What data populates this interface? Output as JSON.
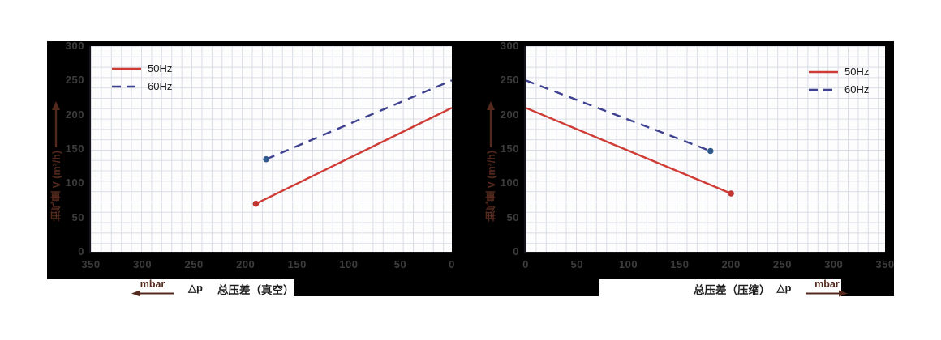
{
  "colors": {
    "panel_bg": "#000000",
    "plot_bg": "#fdfdfe",
    "grid": "#dadde6",
    "tick_label": "#3c3c3c",
    "axis_title_accent": "#53291d",
    "axis_title_text": "#1e1e1e",
    "series_50hz": "#cf3b35",
    "series_60hz": "#3e418f",
    "marker_60hz": "#2e5a8c"
  },
  "chart_data": [
    {
      "type": "line",
      "title": "",
      "ylabel": "抽气量 V (m³/h)",
      "xlabel_parts": {
        "unit": "mbar",
        "dp": "△p",
        "name": "总压差（真空）",
        "arrow": "left"
      },
      "xlim": [
        350,
        0
      ],
      "ylim": [
        0,
        300
      ],
      "x_ticks": [
        350,
        300,
        250,
        200,
        150,
        100,
        50,
        0
      ],
      "y_ticks": [
        300,
        250,
        200,
        150,
        100,
        50,
        0
      ],
      "grid": true,
      "legend_position": "top-left",
      "series": [
        {
          "name": "50Hz",
          "color": "#cf3b35",
          "style": "solid",
          "points": [
            [
              190,
              70
            ],
            [
              0,
              210
            ]
          ],
          "marker_index": 0,
          "marker_color": "#c13530"
        },
        {
          "name": "60Hz",
          "color": "#3e418f",
          "style": "dashed",
          "points": [
            [
              180,
              135
            ],
            [
              0,
              250
            ]
          ],
          "marker_index": 0,
          "marker_color": "#2e5a8c"
        }
      ]
    },
    {
      "type": "line",
      "title": "",
      "ylabel": "抽气量 V (m³/h)",
      "xlabel_parts": {
        "name": "总压差（压缩）",
        "dp": "△p",
        "unit": "mbar",
        "arrow": "right"
      },
      "xlim": [
        0,
        350
      ],
      "ylim": [
        0,
        300
      ],
      "x_ticks": [
        0,
        50,
        100,
        150,
        200,
        250,
        300,
        350
      ],
      "y_ticks": [
        300,
        250,
        200,
        150,
        100,
        50,
        0
      ],
      "grid": true,
      "legend_position": "top-right",
      "series": [
        {
          "name": "50Hz",
          "color": "#cf3b35",
          "style": "solid",
          "points": [
            [
              0,
              210
            ],
            [
              200,
              85
            ]
          ],
          "marker_index": 1,
          "marker_color": "#c13530"
        },
        {
          "name": "60Hz",
          "color": "#3e418f",
          "style": "dashed",
          "points": [
            [
              0,
              250
            ],
            [
              180,
              147
            ]
          ],
          "marker_index": 1,
          "marker_color": "#2e5a8c"
        }
      ]
    }
  ]
}
